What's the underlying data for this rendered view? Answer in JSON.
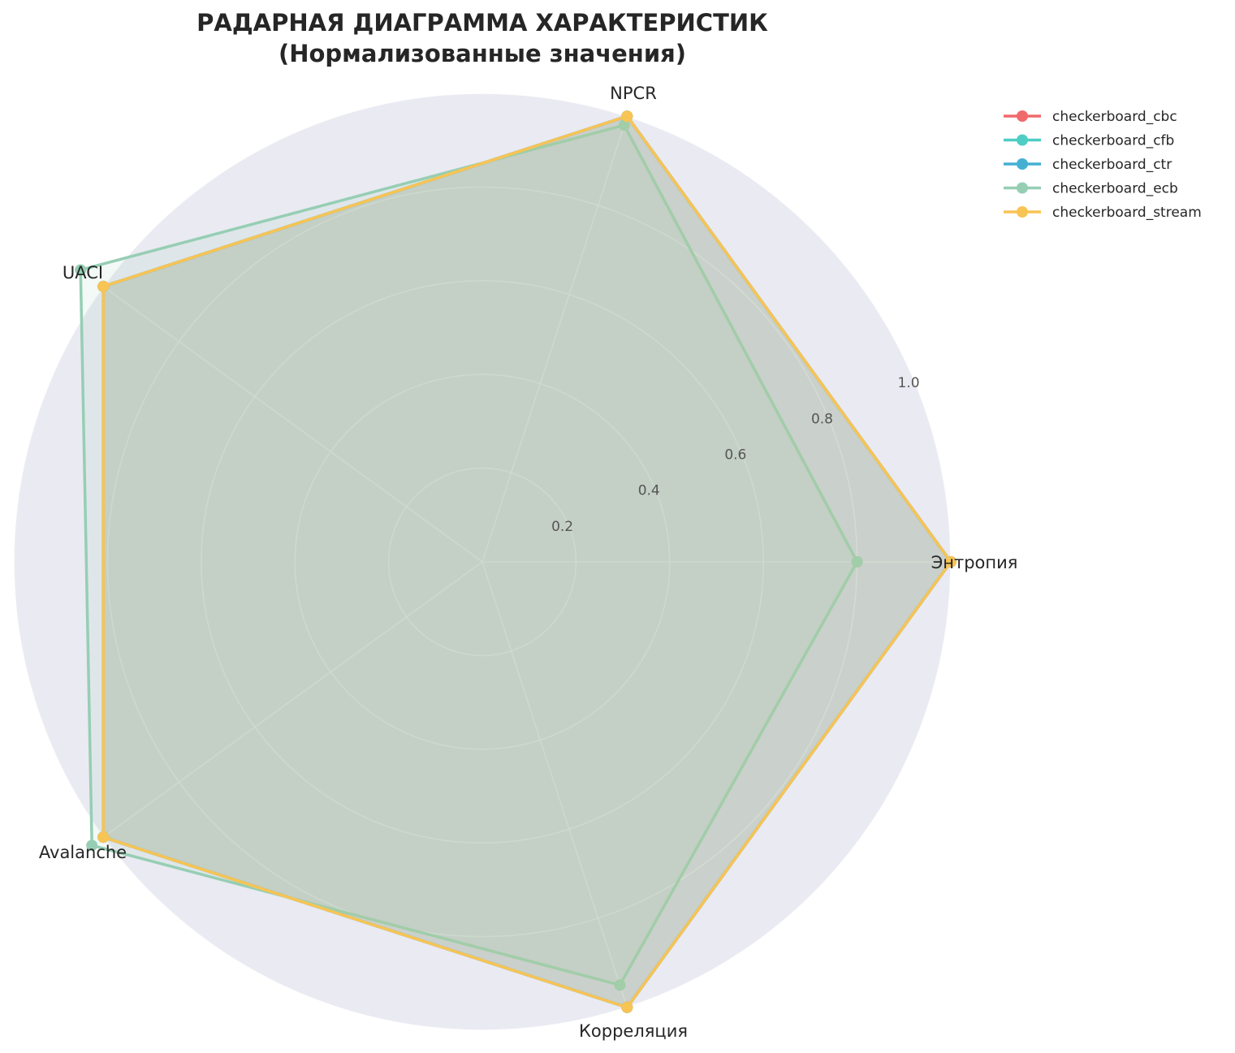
{
  "chart_data": {
    "type": "radar",
    "title_line1": "РАДАРНАЯ ДИАГРАММА ХАРАКТЕРИСТИК",
    "title_line2": "(Нормализованные значения)",
    "categories": [
      "Энтропия",
      "NPCR",
      "UACI",
      "Avalanche",
      "Корреляция"
    ],
    "rlim": [
      0,
      1.0
    ],
    "r_ticks": [
      "0.2",
      "0.4",
      "0.6",
      "0.8",
      "1.0"
    ],
    "grid": true,
    "legend_position": "top-right",
    "background_color": "#eaeaf2",
    "series": [
      {
        "name": "checkerboard_cbc",
        "color": "#f0696b",
        "values": [
          1.0,
          1.0,
          1.0,
          1.0,
          1.0
        ]
      },
      {
        "name": "checkerboard_cfb",
        "color": "#4ecdc4",
        "values": [
          1.0,
          1.0,
          1.0,
          1.0,
          1.0
        ]
      },
      {
        "name": "checkerboard_ctr",
        "color": "#45b0d2",
        "values": [
          1.0,
          1.0,
          1.0,
          1.0,
          1.0
        ]
      },
      {
        "name": "checkerboard_ecb",
        "color": "#96ceb4",
        "values": [
          0.8,
          0.98,
          1.06,
          1.03,
          0.95
        ]
      },
      {
        "name": "checkerboard_stream",
        "color": "#f8c454",
        "values": [
          1.0,
          1.0,
          1.0,
          1.0,
          1.0
        ]
      }
    ]
  }
}
